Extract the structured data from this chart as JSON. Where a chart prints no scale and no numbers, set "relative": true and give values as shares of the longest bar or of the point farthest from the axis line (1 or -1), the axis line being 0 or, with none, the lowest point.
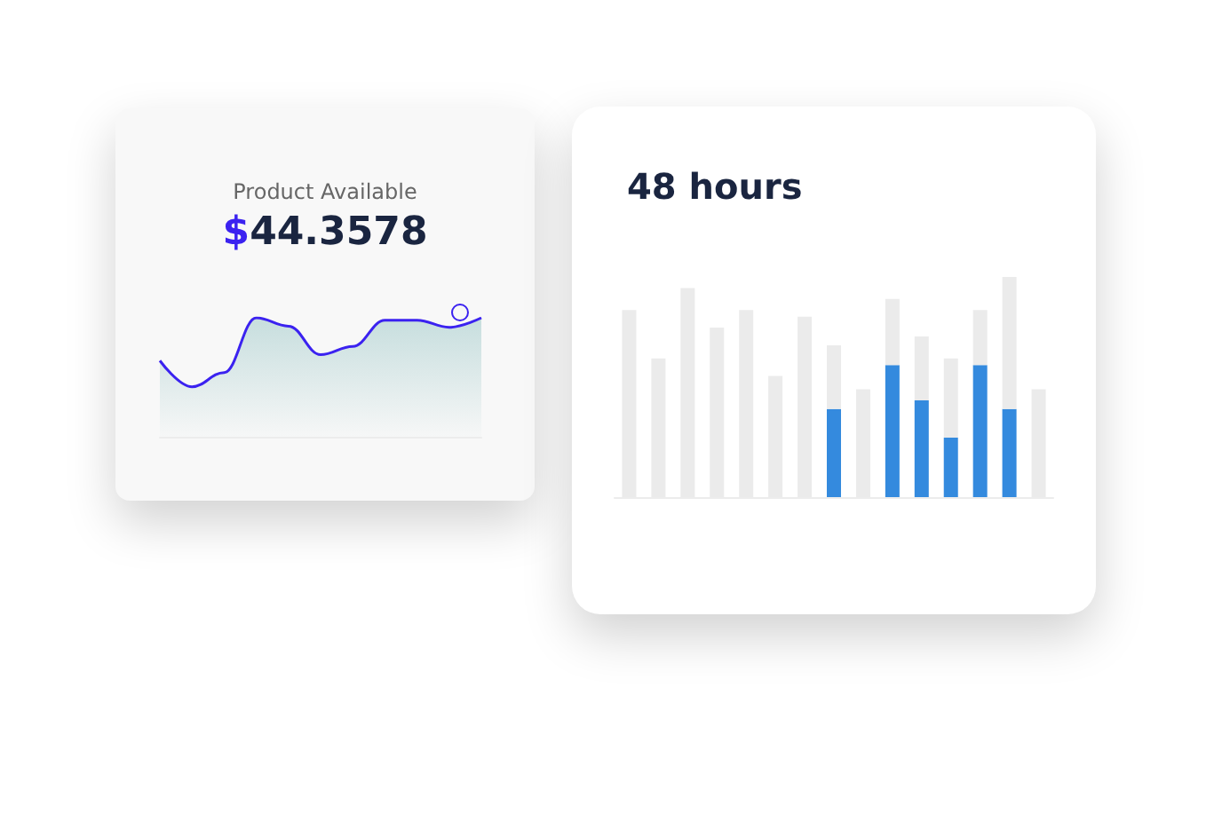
{
  "chart_data": [
    {
      "type": "area",
      "title": "$44.3578",
      "subtitle": "Product Available",
      "relative": true,
      "categories": [
        null,
        null,
        null,
        null,
        null,
        null,
        null,
        null,
        null,
        null,
        null
      ],
      "series": [
        {
          "color": "#3b22f0",
          "values": [
            0.64,
            0.42,
            0.54,
            1,
            0.93,
            0.69,
            0.76,
            0.98,
            0.98,
            0.92,
            1
          ]
        }
      ]
    },
    {
      "type": "bar",
      "title": "48 hours",
      "relative": true,
      "categories": [
        null,
        null,
        null,
        null,
        null,
        null,
        null,
        null,
        null,
        null,
        null,
        null,
        null,
        null,
        null
      ],
      "stacked": true,
      "series": [
        {
          "color": "#348ade",
          "values": [
            0,
            0,
            0,
            0,
            0,
            0,
            0,
            0.4,
            0,
            0.6,
            0.44,
            0.27,
            0.6,
            0.4,
            0
          ]
        },
        {
          "color": "#ebebeb",
          "values": [
            0.85,
            0.63,
            0.95,
            0.77,
            0.85,
            0.55,
            0.82,
            0.29,
            0.49,
            0.3,
            0.29,
            0.36,
            0.25,
            0.6,
            0.49
          ]
        }
      ]
    }
  ]
}
